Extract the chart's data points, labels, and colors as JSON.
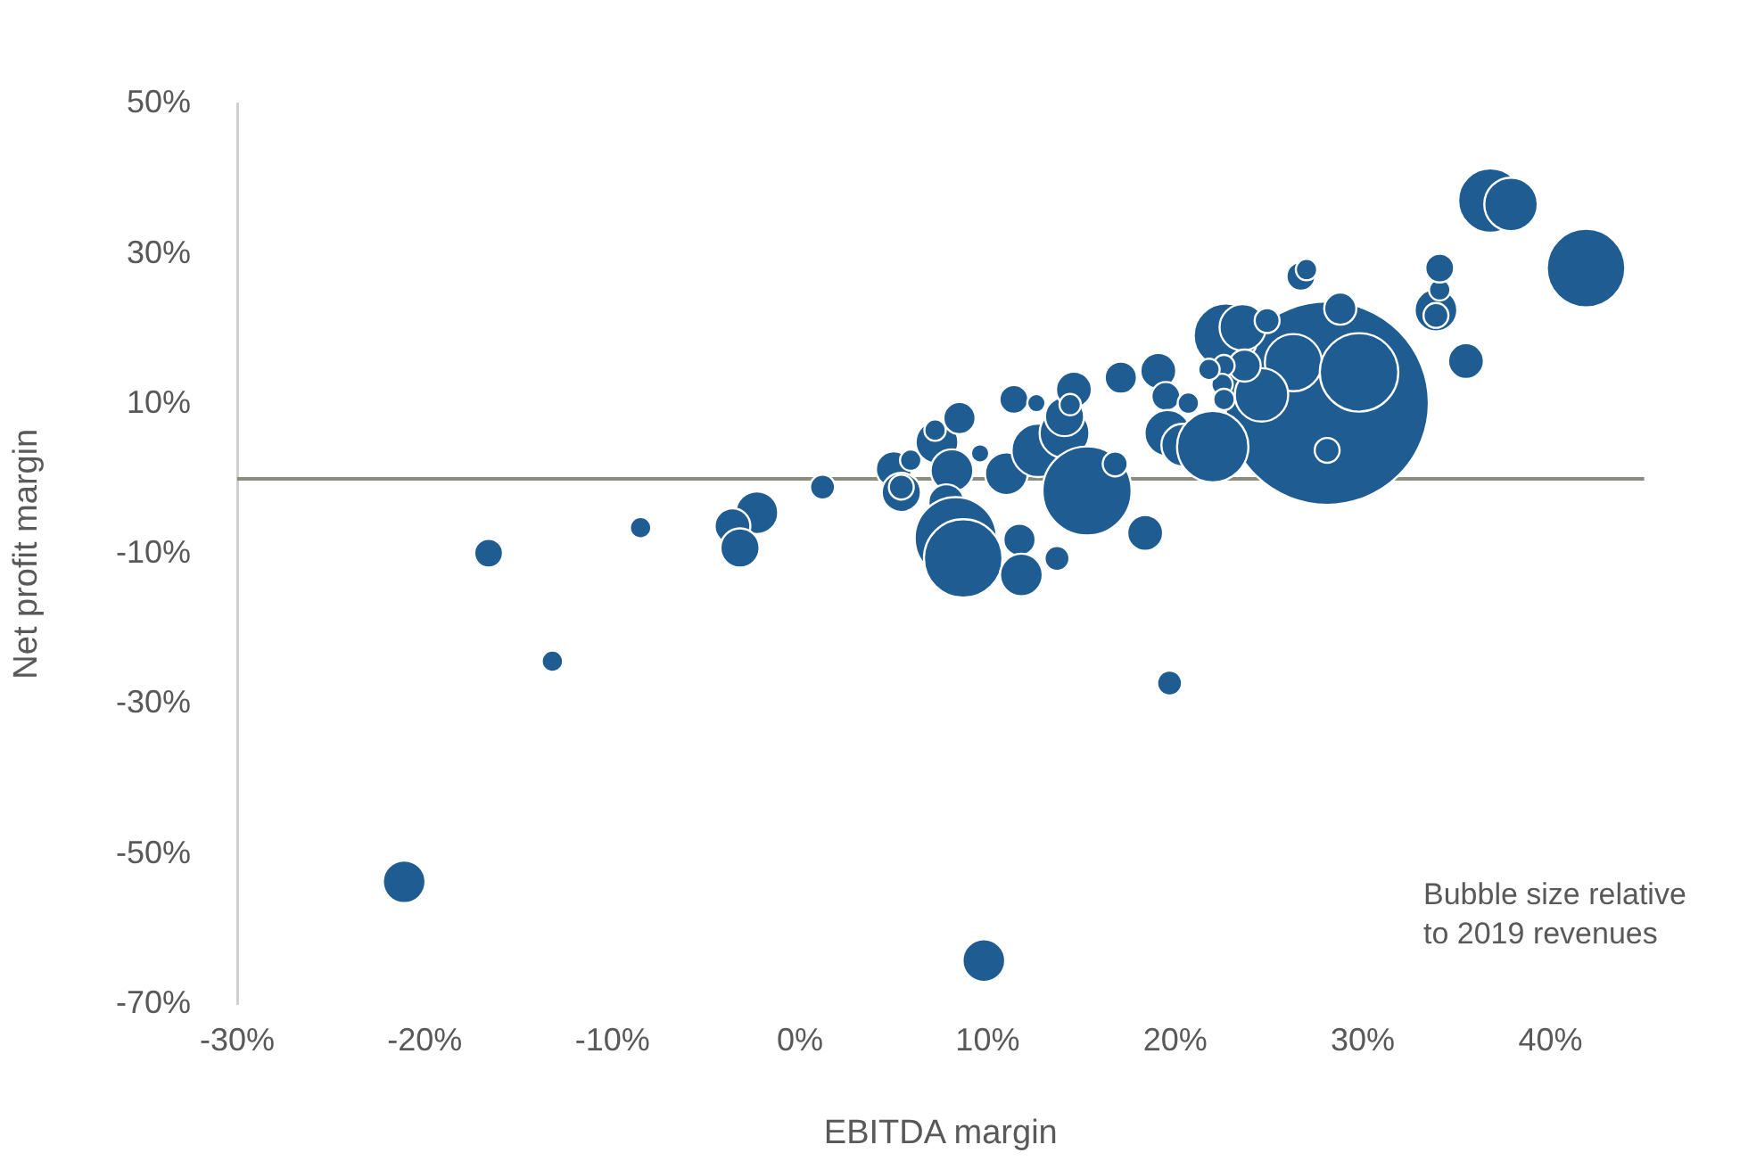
{
  "chart_data": {
    "type": "bubble",
    "xlabel": "EBITDA margin",
    "ylabel": "Net profit margin",
    "color": "#1f5c92",
    "x": [
      28.1,
      -21.1,
      -16.6,
      -13.2,
      -8.5,
      -2.3,
      -3.6,
      -3.2,
      1.2,
      5.0,
      5.9,
      5.4,
      5.4,
      7.3,
      7.2,
      8.5,
      8.1,
      7.8,
      8.3,
      8.7,
      9.6,
      11.0,
      11.7,
      11.8,
      13.7,
      11.4,
      12.6,
      12.7,
      14.1,
      14.1,
      14.6,
      14.4,
      15.3,
      16.8,
      17.1,
      18.4,
      19.1,
      19.5,
      20.7,
      19.6,
      20.4,
      19.7,
      9.8,
      22.0,
      22.7,
      23.6,
      24.9,
      26.3,
      24.6,
      23.7,
      22.6,
      22.5,
      21.8,
      22.6,
      29.8,
      28.1,
      28.8,
      26.7,
      27.0,
      33.9,
      33.9,
      34.1,
      34.1,
      35.5,
      36.8,
      37.9,
      41.9
    ],
    "values": [
      10.1,
      -53.7,
      -9.9,
      -24.3,
      -6.5,
      -4.5,
      -6.3,
      -9.2,
      -1.1,
      1.3,
      2.5,
      -1.8,
      -1.1,
      4.9,
      6.5,
      8.1,
      1.1,
      -3.1,
      -7.9,
      -10.6,
      3.4,
      0.7,
      -8.1,
      -12.8,
      -10.6,
      10.6,
      10.1,
      3.8,
      6.1,
      8.3,
      11.9,
      9.9,
      -1.6,
      2.0,
      13.5,
      -7.2,
      14.4,
      11.0,
      10.1,
      6.1,
      4.5,
      -27.2,
      -64.2,
      4.3,
      19.1,
      20.2,
      21.1,
      15.5,
      11.2,
      15.1,
      15.1,
      12.6,
      14.6,
      10.6,
      14.2,
      3.8,
      22.7,
      27.0,
      27.9,
      22.5,
      21.8,
      25.2,
      28.1,
      15.7,
      37.1,
      36.6,
      28.1
    ],
    "sizes": [
      1,
      0.044,
      0.02,
      0.011,
      0.011,
      0.044,
      0.031,
      0.037,
      0.015,
      0.031,
      0.011,
      0.037,
      0.015,
      0.044,
      0.011,
      0.025,
      0.044,
      0.031,
      0.163,
      0.149,
      0.008,
      0.044,
      0.025,
      0.044,
      0.015,
      0.02,
      0.008,
      0.069,
      0.06,
      0.037,
      0.031,
      0.011,
      0.192,
      0.015,
      0.025,
      0.031,
      0.031,
      0.02,
      0.011,
      0.052,
      0.044,
      0.015,
      0.044,
      0.123,
      0.1,
      0.052,
      0.015,
      0.079,
      0.069,
      0.025,
      0.011,
      0.011,
      0.011,
      0.011,
      0.149,
      0.015,
      0.025,
      0.02,
      0.011,
      0.044,
      0.015,
      0.011,
      0.02,
      0.031,
      0.1,
      0.069,
      0.149
    ],
    "xlim": [
      -30,
      45
    ],
    "xticks": [
      {
        "value": -30,
        "label": "-30%"
      },
      {
        "value": -20,
        "label": "-20%"
      },
      {
        "value": -10,
        "label": "-10%"
      },
      {
        "value": 0,
        "label": "0%"
      },
      {
        "value": 10,
        "label": "10%"
      },
      {
        "value": 20,
        "label": "20%"
      },
      {
        "value": 30,
        "label": "30%"
      },
      {
        "value": 40,
        "label": "40%"
      }
    ],
    "ylim": [
      -70,
      50
    ],
    "yticks": [
      {
        "value": -70,
        "label": "-70%"
      },
      {
        "value": -50,
        "label": "-50%"
      },
      {
        "value": -30,
        "label": "-30%"
      },
      {
        "value": -10,
        "label": "-10%"
      },
      {
        "value": 10,
        "label": "10%"
      },
      {
        "value": 30,
        "label": "30%"
      },
      {
        "value": 50,
        "label": "50%"
      }
    ],
    "ref_lines": [
      {
        "axis": "y",
        "value": 0,
        "color": "#8c8c7c"
      }
    ],
    "grid": false,
    "legend": false,
    "annotations": [
      "Bubble size relative to 2019 revenues"
    ]
  }
}
